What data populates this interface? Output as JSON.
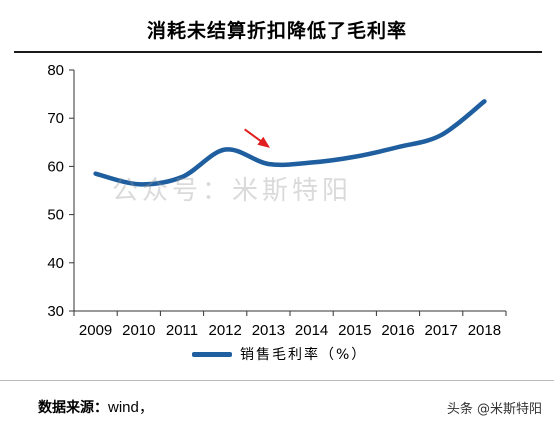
{
  "chart_data": {
    "type": "line",
    "title": "消耗未结算折扣降低了毛利率",
    "categories": [
      "2009",
      "2010",
      "2011",
      "2012",
      "2013",
      "2014",
      "2015",
      "2016",
      "2017",
      "2018"
    ],
    "series": [
      {
        "name": "销售毛利率（%）",
        "values": [
          58.5,
          56.3,
          57.8,
          63.5,
          60.5,
          60.8,
          62.0,
          64.0,
          66.5,
          73.5
        ],
        "color": "#1f5fa0"
      }
    ],
    "ylim": [
      30,
      80
    ],
    "yticks": [
      30,
      40,
      50,
      60,
      70,
      80
    ],
    "grid": false,
    "legend_position": "bottom",
    "annotation": {
      "type": "arrow",
      "color": "#e02020"
    }
  },
  "watermark": "公众号：米斯特阳",
  "source": {
    "label": "数据来源：",
    "value": "wind，"
  },
  "brand": "头条 @米斯特阳"
}
